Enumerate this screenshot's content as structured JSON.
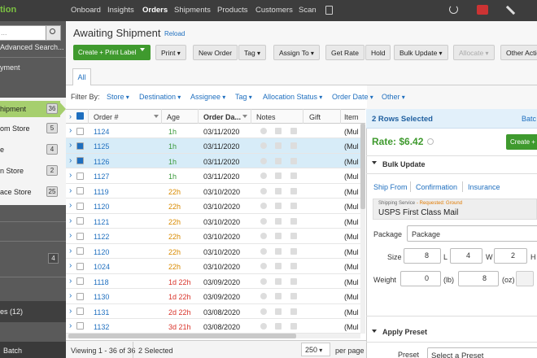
{
  "nav": {
    "logo": "tion",
    "items": [
      "Onboard",
      "Insights",
      "Orders",
      "Shipments",
      "Products",
      "Customers",
      "Scan"
    ],
    "active": 2
  },
  "sidebar": {
    "search": "...",
    "advanced": "Advanced Search...",
    "top_item": "yment",
    "items": [
      {
        "label": "hipment",
        "count": 36
      },
      {
        "label": "om Store",
        "count": 5
      },
      {
        "label": "e",
        "count": 4
      },
      {
        "label": "n Store",
        "count": 2
      },
      {
        "label": "ace Store",
        "count": 25
      }
    ],
    "lower_count": 4,
    "dark_item": "es (12)",
    "bottom_item": "Batch"
  },
  "main": {
    "title": "Awaiting Shipment",
    "reload": "Reload",
    "primary_button": "Create + Print Label",
    "buttons": [
      {
        "label": "Print",
        "dropdown": true
      },
      {
        "label": "New Order"
      },
      {
        "label": "Tag",
        "dropdown": true
      },
      {
        "label": "Assign To",
        "dropdown": true
      },
      {
        "label": "Get Rate"
      },
      {
        "label": "Hold"
      },
      {
        "label": "Bulk Update",
        "dropdown": true
      },
      {
        "label": "Allocate",
        "dropdown": true,
        "disabled": true
      },
      {
        "label": "Other Actio"
      }
    ],
    "tab": "All",
    "filter_label": "Filter By:",
    "filters": [
      "Store",
      "Destination",
      "Assignee",
      "Tag",
      "Allocation Status",
      "Order Date",
      "Other"
    ]
  },
  "table": {
    "columns": [
      "Order #",
      "Age",
      "Order Da...",
      "Notes",
      "Gift",
      "Item"
    ],
    "rows": [
      {
        "order": "1124",
        "age": "1h",
        "date": "03/11/2020",
        "item": "(Mul",
        "age_color": "#3a9a3a"
      },
      {
        "order": "1125",
        "age": "1h",
        "date": "03/11/2020",
        "item": "(Mul",
        "age_color": "#3a9a3a",
        "checked": true
      },
      {
        "order": "1126",
        "age": "1h",
        "date": "03/11/2020",
        "item": "(Mul",
        "age_color": "#3a9a3a",
        "checked": true
      },
      {
        "order": "1127",
        "age": "1h",
        "date": "03/11/2020",
        "item": "(Mul",
        "age_color": "#3a9a3a"
      },
      {
        "order": "1119",
        "age": "22h",
        "date": "03/10/2020",
        "item": "(Mul",
        "age_color": "#d98a00"
      },
      {
        "order": "1120",
        "age": "22h",
        "date": "03/10/2020",
        "item": "(Mul",
        "age_color": "#d98a00"
      },
      {
        "order": "1121",
        "age": "22h",
        "date": "03/10/2020",
        "item": "(Mul",
        "age_color": "#d98a00"
      },
      {
        "order": "1122",
        "age": "22h",
        "date": "03/10/2020",
        "item": "(Mul",
        "age_color": "#d98a00"
      },
      {
        "order": "1120",
        "age": "22h",
        "date": "03/10/2020",
        "item": "(Mul",
        "age_color": "#d98a00"
      },
      {
        "order": "1024",
        "age": "22h",
        "date": "03/10/2020",
        "item": "(Mul",
        "age_color": "#d98a00"
      },
      {
        "order": "1118",
        "age": "1d 22h",
        "date": "03/09/2020",
        "item": "(Mul",
        "age_color": "#d9342b"
      },
      {
        "order": "1130",
        "age": "1d 22h",
        "date": "03/09/2020",
        "item": "(Mul",
        "age_color": "#d9342b"
      },
      {
        "order": "1131",
        "age": "2d 22h",
        "date": "03/08/2020",
        "item": "(Mul",
        "age_color": "#d9342b"
      },
      {
        "order": "1132",
        "age": "3d 21h",
        "date": "03/08/2020",
        "item": "(Mul",
        "age_color": "#d9342b"
      }
    ],
    "footer": {
      "viewing": "Viewing 1 - 36 of 36",
      "selected": "2 Selected",
      "per_page": 250,
      "per_page_label": "per page"
    }
  },
  "panel": {
    "header": "2 Rows Selected",
    "batch": "Batc",
    "rate": "Rate: $6.42",
    "create": "Create + L",
    "bulk": "Bulk Update",
    "tabs": [
      "Ship From",
      "Confirmation",
      "Insurance"
    ],
    "service_label": "Shipping Service",
    "requested": "- Requested: Ground",
    "service": "USPS First Class Mail",
    "package_label": "Package",
    "package": "Package",
    "size_label": "Size",
    "dims": [
      {
        "value": 8,
        "unit": "L"
      },
      {
        "value": 4,
        "unit": "W"
      },
      {
        "value": 2,
        "unit": "H"
      }
    ],
    "weight_label": "Weight",
    "weight": [
      {
        "value": 0,
        "unit": "(lb)"
      },
      {
        "value": 8,
        "unit": "(oz)"
      }
    ],
    "apply": "Apply Preset",
    "preset_label": "Preset",
    "preset": "Select a Preset"
  }
}
